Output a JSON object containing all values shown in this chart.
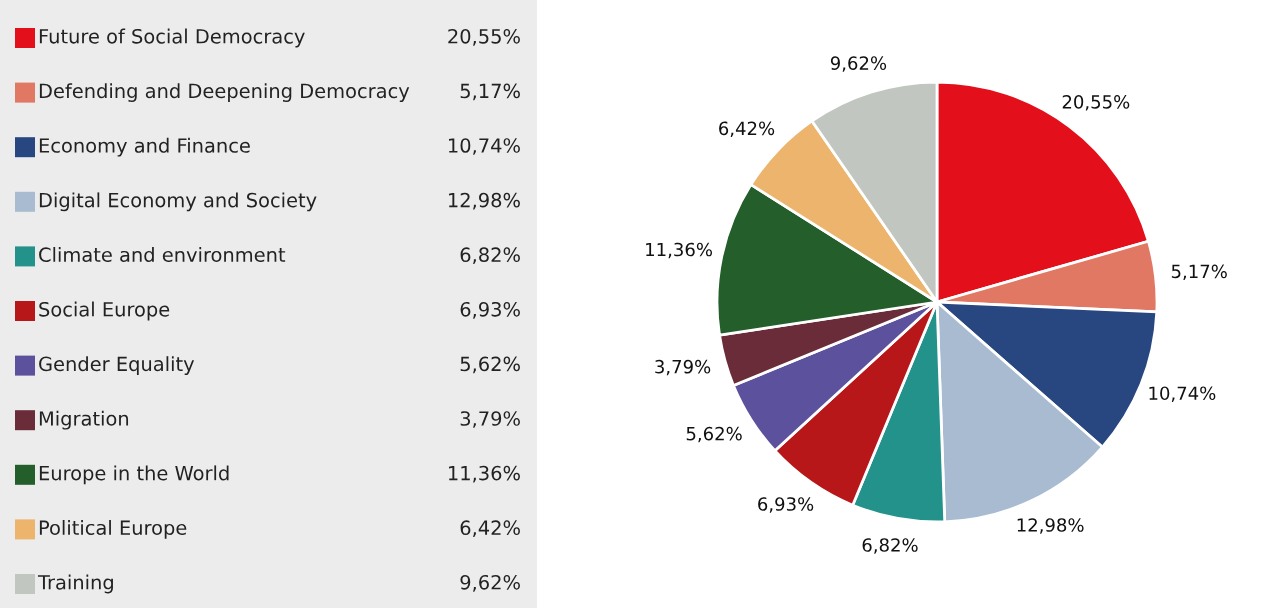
{
  "chart_data": {
    "type": "pie",
    "categories": [
      "Future of Social Democracy",
      "Defending and Deepening Democracy",
      "Economy and Finance",
      "Digital Economy and Society",
      "Climate and environment",
      "Social Europe",
      "Gender Equality",
      "Migration",
      "Europe in the World",
      "Political Europe",
      "Training"
    ],
    "values": [
      20.55,
      5.17,
      10.74,
      12.98,
      6.82,
      6.93,
      5.62,
      3.79,
      11.36,
      6.42,
      9.62
    ],
    "value_labels": [
      "20,55%",
      "5,17%",
      "10,74%",
      "12,98%",
      "6,82%",
      "6,93%",
      "5,62%",
      "3,79%",
      "11,36%",
      "6,42%",
      "9,62%"
    ],
    "colors": [
      "#e3101b",
      "#e07864",
      "#284780",
      "#a8bbd0",
      "#23928a",
      "#b71719",
      "#5b519c",
      "#6a2c38",
      "#235e2b",
      "#edb46e",
      "#c2c6c0"
    ],
    "legend": "left"
  }
}
